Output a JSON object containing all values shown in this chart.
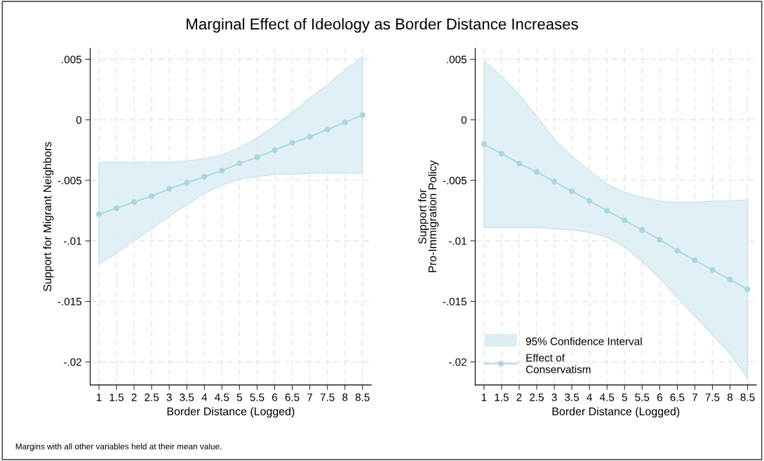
{
  "chart_data": [
    {
      "type": "line",
      "title": "Marginal Effect of Ideology as Border Distance Increases",
      "xlabel": "Border Distance (Logged)",
      "ylabel": "Support for Migrant Neighbors",
      "x": [
        1,
        1.5,
        2,
        2.5,
        3,
        3.5,
        4,
        4.5,
        5,
        5.5,
        6,
        6.5,
        7,
        7.5,
        8,
        8.5
      ],
      "series": [
        {
          "color": "#a9d6e3",
          "values": [
            -0.0078,
            -0.0073,
            -0.0068,
            -0.0063,
            -0.0057,
            -0.0052,
            -0.0047,
            -0.0042,
            -0.0036,
            -0.0031,
            -0.0025,
            -0.0019,
            -0.0014,
            -0.0008,
            -0.0002,
            0.0004
          ],
          "lower": [
            -0.0119,
            -0.011,
            -0.01,
            -0.009,
            -0.008,
            -0.007,
            -0.0061,
            -0.0054,
            -0.0049,
            -0.0047,
            -0.0045,
            -0.0045,
            -0.0044,
            -0.0044,
            -0.0044,
            -0.0044
          ],
          "upper": [
            -0.0035,
            -0.0035,
            -0.0035,
            -0.0035,
            -0.0035,
            -0.0034,
            -0.0032,
            -0.0029,
            -0.0023,
            -0.0015,
            -0.0005,
            0.0006,
            0.0018,
            0.0029,
            0.0041,
            0.0052
          ]
        }
      ],
      "xlim": [
        0.75,
        8.75
      ],
      "xticks": [
        1,
        1.5,
        2,
        2.5,
        3,
        3.5,
        4,
        4.5,
        5,
        5.5,
        6,
        6.5,
        7,
        7.5,
        8,
        8.5
      ],
      "ylim": [
        -0.0219,
        0.0059
      ],
      "yticks": [
        {
          "value": 0.005,
          "label": ".005"
        },
        0,
        {
          "value": -0.005,
          "label": "-.005"
        },
        {
          "value": -0.01,
          "label": "-.01"
        },
        {
          "value": -0.015,
          "label": "-.015"
        },
        {
          "value": -0.02,
          "label": "-.02"
        }
      ],
      "grid": true,
      "marker": "circle",
      "line_style": "solid",
      "annotations": [
        "Margins with all other variables held at their mean value."
      ]
    },
    {
      "type": "line",
      "xlabel": "Border Distance (Logged)",
      "ylabel": "Support for\nPro-Immigration Policy",
      "x": [
        1,
        1.5,
        2,
        2.5,
        3,
        3.5,
        4,
        4.5,
        5,
        5.5,
        6,
        6.5,
        7,
        7.5,
        8,
        8.5
      ],
      "series": [
        {
          "name": "Effect of\nConservatism",
          "color": "#a9d6e3",
          "values": [
            -0.002,
            -0.0028,
            -0.0036,
            -0.0043,
            -0.0051,
            -0.0059,
            -0.0067,
            -0.0075,
            -0.0083,
            -0.0091,
            -0.0099,
            -0.0108,
            -0.0116,
            -0.0124,
            -0.0132,
            -0.014
          ],
          "lower": [
            -0.0089,
            -0.0089,
            -0.0089,
            -0.0089,
            -0.009,
            -0.0091,
            -0.0093,
            -0.0097,
            -0.0105,
            -0.0117,
            -0.0131,
            -0.0147,
            -0.0162,
            -0.0178,
            -0.0193,
            -0.0214
          ],
          "upper": [
            0.0049,
            0.0036,
            0.0021,
            0.0003,
            -0.0016,
            -0.003,
            -0.0042,
            -0.0053,
            -0.006,
            -0.0064,
            -0.0067,
            -0.0068,
            -0.0068,
            -0.0067,
            -0.0067,
            -0.0066
          ]
        }
      ],
      "xlim": [
        0.75,
        8.75
      ],
      "xticks": [
        1,
        1.5,
        2,
        2.5,
        3,
        3.5,
        4,
        4.5,
        5,
        5.5,
        6,
        6.5,
        7,
        7.5,
        8,
        8.5
      ],
      "ylim": [
        -0.0219,
        0.0059
      ],
      "yticks": [
        {
          "value": 0.005,
          "label": ".005"
        },
        0,
        {
          "value": -0.005,
          "label": "-.005"
        },
        {
          "value": -0.01,
          "label": "-.01"
        },
        {
          "value": -0.015,
          "label": "-.015"
        },
        {
          "value": -0.02,
          "label": "-.02"
        }
      ],
      "grid": true,
      "marker": "circle",
      "line_style": "solid",
      "legend": "bottom left",
      "annotations": [
        "95% Confidence Interval"
      ]
    }
  ]
}
